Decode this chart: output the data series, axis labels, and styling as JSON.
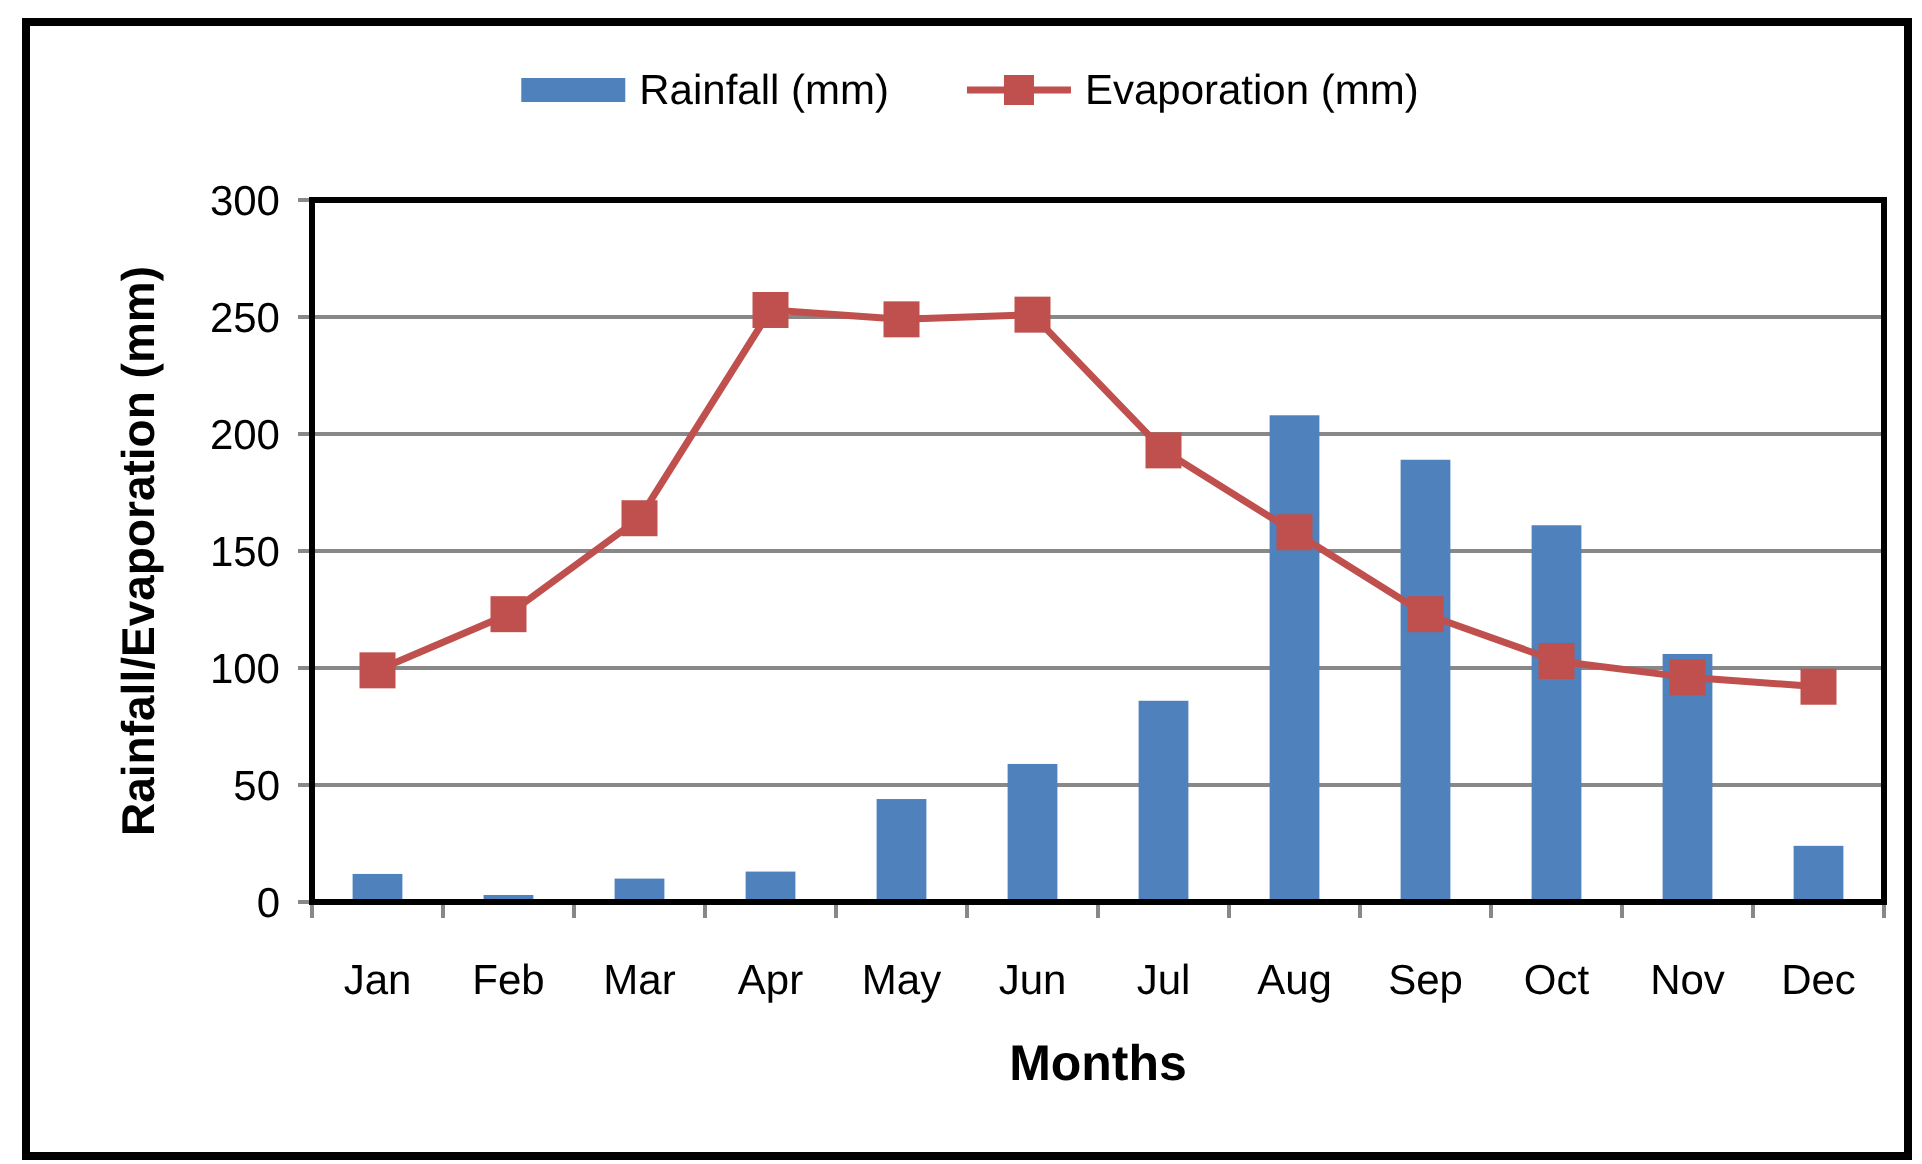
{
  "chart_data": {
    "type": "bar",
    "categories": [
      "Jan",
      "Feb",
      "Mar",
      "Apr",
      "May",
      "Jun",
      "Jul",
      "Aug",
      "Sep",
      "Oct",
      "Nov",
      "Dec"
    ],
    "series": [
      {
        "name": "Rainfall (mm)",
        "color": "#4f81bd",
        "values": [
          12,
          3,
          10,
          13,
          44,
          59,
          86,
          208,
          189,
          161,
          106,
          24
        ]
      },
      {
        "name": "Evaporation (mm)",
        "type": "line",
        "color": "#c0504d",
        "values": [
          99,
          123,
          164,
          253,
          249,
          251,
          193,
          158,
          123,
          103,
          96,
          92
        ]
      }
    ],
    "xlabel": "Months",
    "ylabel": "Rainfall/Evaporation (mm)",
    "ylim": [
      0,
      300
    ],
    "yticks": [
      0,
      50,
      100,
      150,
      200,
      250,
      300
    ],
    "grid": "y",
    "legend": "top",
    "marker": "square",
    "line_style": "solid"
  }
}
